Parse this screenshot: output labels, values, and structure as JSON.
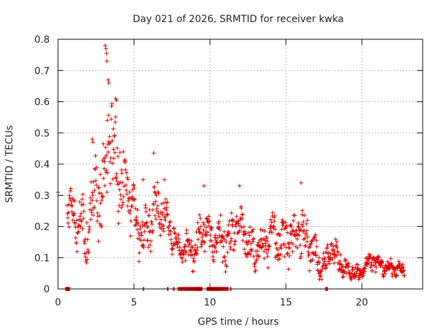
{
  "chart_data": {
    "type": "scatter",
    "title": "Day 021 of 2026, SRMTID for receiver kwka",
    "xlabel": "GPS time / hours",
    "ylabel": "SRMTID / TECUs",
    "xlim": [
      0,
      24
    ],
    "ylim": [
      0,
      0.8
    ],
    "xticks": [
      0,
      5,
      10,
      15,
      20
    ],
    "yticks": [
      0,
      0.1,
      0.2,
      0.3,
      0.4,
      0.5,
      0.6,
      0.7,
      0.8
    ],
    "xtick_labels": [
      "0",
      "5",
      "10",
      "15",
      "20"
    ],
    "ytick_labels": [
      "0",
      "0.1",
      "0.2",
      "0.3",
      "0.4",
      "0.5",
      "0.6",
      "0.7",
      "0.8"
    ],
    "grid": true,
    "marker": "plus",
    "color": "#e00000",
    "trend": [
      [
        0.0,
        0.31
      ],
      [
        0.6,
        0.25
      ],
      [
        1.0,
        0.24
      ],
      [
        1.5,
        0.2
      ],
      [
        1.9,
        0.16
      ],
      [
        2.2,
        0.25
      ],
      [
        2.5,
        0.38
      ],
      [
        2.8,
        0.24
      ],
      [
        3.1,
        0.35
      ],
      [
        3.3,
        0.55
      ],
      [
        3.6,
        0.38
      ],
      [
        3.9,
        0.42
      ],
      [
        4.2,
        0.33
      ],
      [
        4.6,
        0.33
      ],
      [
        5.0,
        0.25
      ],
      [
        5.3,
        0.2
      ],
      [
        5.7,
        0.17
      ],
      [
        6.0,
        0.2
      ],
      [
        6.4,
        0.26
      ],
      [
        6.9,
        0.26
      ],
      [
        7.2,
        0.22
      ],
      [
        7.6,
        0.18
      ],
      [
        8.0,
        0.12
      ],
      [
        9.0,
        0.13
      ],
      [
        9.5,
        0.2
      ],
      [
        10.0,
        0.17
      ],
      [
        11.0,
        0.14
      ],
      [
        11.6,
        0.18
      ],
      [
        12.0,
        0.22
      ],
      [
        12.5,
        0.14
      ],
      [
        13.0,
        0.12
      ],
      [
        13.5,
        0.13
      ],
      [
        14.0,
        0.18
      ],
      [
        14.5,
        0.15
      ],
      [
        15.0,
        0.15
      ],
      [
        15.5,
        0.17
      ],
      [
        16.0,
        0.18
      ],
      [
        16.5,
        0.15
      ],
      [
        16.9,
        0.12
      ],
      [
        17.3,
        0.06
      ],
      [
        17.7,
        0.09
      ],
      [
        18.0,
        0.13
      ],
      [
        18.4,
        0.1
      ],
      [
        18.8,
        0.07
      ],
      [
        19.4,
        0.06
      ],
      [
        19.9,
        0.05
      ],
      [
        20.3,
        0.08
      ],
      [
        20.8,
        0.09
      ],
      [
        21.2,
        0.07
      ],
      [
        21.8,
        0.07
      ],
      [
        22.3,
        0.06
      ],
      [
        22.8,
        0.06
      ]
    ],
    "spread": [
      [
        0.0,
        0.0
      ],
      [
        0.6,
        0.05
      ],
      [
        1.5,
        0.06
      ],
      [
        2.5,
        0.09
      ],
      [
        3.3,
        0.12
      ],
      [
        4.0,
        0.1
      ],
      [
        5.0,
        0.06
      ],
      [
        6.0,
        0.06
      ],
      [
        7.0,
        0.05
      ],
      [
        8.0,
        0.03
      ],
      [
        10.0,
        0.05
      ],
      [
        12.0,
        0.05
      ],
      [
        14.0,
        0.05
      ],
      [
        16.0,
        0.06
      ],
      [
        17.3,
        0.03
      ],
      [
        18.5,
        0.03
      ],
      [
        20.0,
        0.015
      ],
      [
        21.0,
        0.02
      ],
      [
        22.8,
        0.015
      ]
    ],
    "outliers": [
      [
        0.0,
        0.31
      ],
      [
        3.1,
        0.78
      ],
      [
        3.15,
        0.77
      ],
      [
        3.2,
        0.755
      ],
      [
        3.22,
        0.73
      ],
      [
        3.3,
        0.67
      ],
      [
        3.35,
        0.66
      ],
      [
        3.8,
        0.61
      ],
      [
        3.85,
        0.605
      ],
      [
        6.3,
        0.435
      ],
      [
        16.0,
        0.34
      ],
      [
        5.6,
        0.35
      ],
      [
        7.0,
        0.35
      ],
      [
        9.6,
        0.33
      ],
      [
        11.95,
        0.33
      ],
      [
        2.25,
        0.48
      ],
      [
        2.3,
        0.47
      ],
      [
        17.2,
        0.03
      ],
      [
        17.25,
        0.04
      ],
      [
        19.8,
        0.03
      ]
    ],
    "zero_ranges": [
      [
        0.5,
        0.8
      ],
      [
        5.6,
        5.65
      ],
      [
        7.2,
        7.25
      ],
      [
        7.6,
        7.65
      ],
      [
        7.9,
        9.5
      ],
      [
        9.8,
        11.2
      ],
      [
        11.35,
        11.4
      ],
      [
        17.6,
        17.75
      ]
    ]
  }
}
